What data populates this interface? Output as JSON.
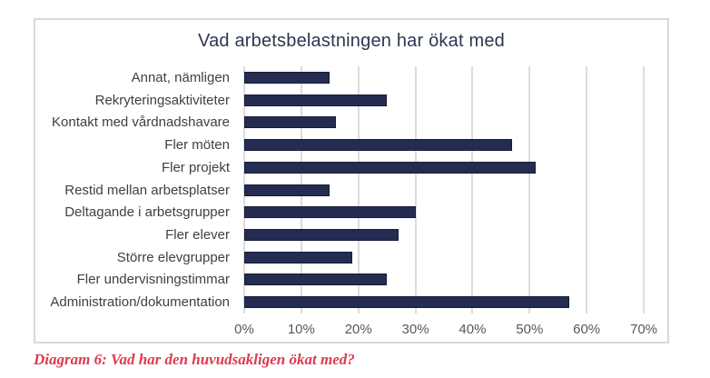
{
  "chart_data": {
    "type": "bar",
    "orientation": "horizontal",
    "title": "Vad arbetsbelastningen har ökat med",
    "categories": [
      "Annat, nämligen",
      "Rekryteringsaktiviteter",
      "Kontakt med vårdnadshavare",
      "Fler möten",
      "Fler projekt",
      "Restid mellan arbetsplatser",
      "Deltagande i arbetsgrupper",
      "Fler elever",
      "Större elevgrupper",
      "Fler undervisningstimmar",
      "Administration/dokumentation"
    ],
    "values": [
      15,
      25,
      16,
      47,
      51,
      15,
      30,
      27,
      19,
      25,
      57
    ],
    "unit": "%",
    "xlabel": "",
    "ylabel": "",
    "xlim": [
      0,
      70
    ],
    "xtick_step": 10,
    "xticks": [
      "0%",
      "10%",
      "20%",
      "30%",
      "40%",
      "50%",
      "60%",
      "70%"
    ],
    "grid": true,
    "legend": "none",
    "caption": "Diagram 6: Vad har den huvudsakligen ökat med?",
    "colors": {
      "bar": "#252c52",
      "bar_border": "#171c36",
      "grid": "#dcdcdc",
      "chart_border": "#d9d9d9",
      "title": "#2b3750",
      "category_label": "#3d4145",
      "tick_label": "#595959",
      "caption": "#df3b4e",
      "background": "#ffffff"
    }
  }
}
